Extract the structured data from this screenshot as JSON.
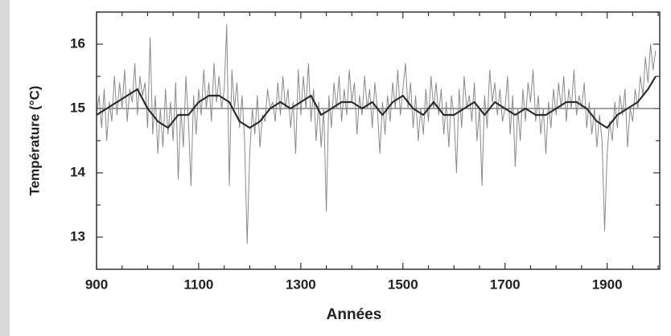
{
  "chart_data": {
    "type": "line",
    "ylabel": "Température (°C)",
    "xlabel": "Années",
    "xlim": [
      900,
      2003
    ],
    "ylim": [
      12.5,
      16.5
    ],
    "xticks": [
      900,
      1100,
      1300,
      1500,
      1700,
      1900
    ],
    "xticks_minor": [
      950,
      1000,
      1050,
      1150,
      1200,
      1250,
      1350,
      1400,
      1450,
      1550,
      1600,
      1650,
      1750,
      1800,
      1850,
      1950,
      2000
    ],
    "yticks": [
      13,
      14,
      15,
      16
    ],
    "yticks_minor": [
      13.5,
      14.5,
      15.5,
      16.5
    ],
    "baseline": 15,
    "series": [
      {
        "color": "#8a8a8a",
        "x": [
          900,
          905,
          910,
          915,
          920,
          925,
          930,
          935,
          940,
          945,
          950,
          955,
          960,
          965,
          970,
          975,
          980,
          985,
          990,
          995,
          1000,
          1005,
          1010,
          1015,
          1020,
          1025,
          1030,
          1035,
          1040,
          1045,
          1050,
          1055,
          1060,
          1065,
          1070,
          1075,
          1080,
          1085,
          1090,
          1095,
          1100,
          1105,
          1110,
          1115,
          1120,
          1125,
          1130,
          1135,
          1140,
          1145,
          1150,
          1155,
          1160,
          1165,
          1170,
          1175,
          1180,
          1185,
          1190,
          1195,
          1200,
          1205,
          1210,
          1215,
          1220,
          1225,
          1230,
          1235,
          1240,
          1245,
          1250,
          1255,
          1260,
          1265,
          1270,
          1275,
          1280,
          1285,
          1290,
          1295,
          1300,
          1305,
          1310,
          1315,
          1320,
          1325,
          1330,
          1335,
          1340,
          1345,
          1350,
          1355,
          1360,
          1365,
          1370,
          1375,
          1380,
          1385,
          1390,
          1395,
          1400,
          1405,
          1410,
          1415,
          1420,
          1425,
          1430,
          1435,
          1440,
          1445,
          1450,
          1455,
          1460,
          1465,
          1470,
          1475,
          1480,
          1485,
          1490,
          1495,
          1500,
          1505,
          1510,
          1515,
          1520,
          1525,
          1530,
          1535,
          1540,
          1545,
          1550,
          1555,
          1560,
          1565,
          1570,
          1575,
          1580,
          1585,
          1590,
          1595,
          1600,
          1605,
          1610,
          1615,
          1620,
          1625,
          1630,
          1635,
          1640,
          1645,
          1650,
          1655,
          1660,
          1665,
          1670,
          1675,
          1680,
          1685,
          1690,
          1695,
          1700,
          1705,
          1710,
          1715,
          1720,
          1725,
          1730,
          1735,
          1740,
          1745,
          1750,
          1755,
          1760,
          1765,
          1770,
          1775,
          1780,
          1785,
          1790,
          1795,
          1800,
          1805,
          1810,
          1815,
          1820,
          1825,
          1830,
          1835,
          1840,
          1845,
          1850,
          1855,
          1860,
          1865,
          1870,
          1875,
          1880,
          1885,
          1890,
          1895,
          1900,
          1905,
          1910,
          1915,
          1920,
          1925,
          1930,
          1935,
          1940,
          1945,
          1950,
          1955,
          1960,
          1965,
          1970,
          1975,
          1980,
          1985,
          1990,
          1995
        ],
        "values": [
          14.9,
          15.2,
          14.7,
          15.3,
          14.5,
          15.1,
          14.8,
          15.5,
          14.9,
          15.4,
          15.0,
          15.6,
          14.8,
          15.3,
          15.1,
          15.7,
          14.9,
          15.5,
          15.2,
          15.4,
          14.7,
          16.1,
          14.6,
          15.2,
          14.3,
          15.0,
          14.4,
          15.3,
          14.6,
          15.1,
          14.5,
          15.4,
          13.9,
          15.0,
          14.4,
          15.5,
          14.8,
          13.8,
          15.2,
          14.6,
          15.3,
          14.9,
          15.6,
          15.0,
          15.4,
          14.8,
          15.7,
          15.1,
          15.5,
          15.0,
          15.3,
          16.3,
          13.8,
          15.6,
          15.0,
          15.4,
          14.7,
          15.2,
          14.5,
          12.9,
          14.3,
          15.0,
          14.6,
          15.2,
          14.4,
          14.9,
          14.8,
          15.3,
          15.0,
          15.1,
          14.8,
          15.4,
          14.9,
          15.5,
          15.0,
          15.3,
          14.7,
          15.1,
          14.3,
          15.6,
          14.9,
          15.5,
          15.0,
          15.7,
          14.8,
          15.3,
          14.5,
          15.1,
          14.4,
          15.0,
          13.4,
          15.2,
          14.7,
          15.4,
          15.0,
          15.5,
          14.8,
          15.3,
          14.9,
          15.6,
          15.1,
          15.4,
          14.6,
          15.2,
          14.9,
          15.5,
          15.0,
          15.3,
          14.7,
          15.4,
          15.0,
          14.3,
          15.1,
          14.6,
          15.2,
          14.8,
          15.4,
          15.0,
          15.6,
          14.9,
          15.3,
          15.7,
          15.0,
          15.4,
          14.7,
          15.2,
          14.5,
          15.0,
          14.6,
          15.3,
          14.8,
          15.5,
          15.0,
          15.4,
          14.9,
          15.3,
          14.6,
          15.1,
          14.4,
          15.2,
          14.9,
          14.0,
          15.3,
          14.7,
          15.5,
          15.0,
          15.2,
          14.8,
          15.4,
          14.5,
          15.0,
          13.8,
          15.2,
          14.7,
          15.6,
          15.1,
          15.4,
          14.9,
          15.3,
          14.8,
          15.0,
          15.5,
          14.6,
          15.2,
          14.1,
          15.0,
          14.5,
          15.3,
          14.8,
          15.4,
          15.1,
          15.6,
          14.8,
          15.2,
          14.6,
          15.0,
          14.3,
          15.1,
          14.7,
          15.3,
          14.9,
          15.4,
          15.0,
          15.5,
          14.8,
          15.3,
          15.0,
          15.6,
          14.9,
          15.2,
          15.0,
          15.4,
          14.7,
          15.1,
          14.6,
          15.0,
          14.4,
          14.9,
          14.5,
          13.1,
          14.3,
          14.8,
          14.5,
          15.1,
          14.7,
          15.2,
          14.9,
          15.3,
          14.4,
          15.0,
          14.8,
          15.3,
          15.0,
          15.5,
          15.2,
          15.8,
          15.4,
          16.0,
          15.6,
          15.9
        ]
      },
      {
        "color": "#2b2b2b",
        "x": [
          900,
          920,
          940,
          960,
          980,
          1000,
          1020,
          1040,
          1060,
          1080,
          1100,
          1120,
          1140,
          1160,
          1180,
          1200,
          1220,
          1240,
          1260,
          1280,
          1300,
          1320,
          1340,
          1360,
          1380,
          1400,
          1420,
          1440,
          1460,
          1480,
          1500,
          1520,
          1540,
          1560,
          1580,
          1600,
          1620,
          1640,
          1660,
          1680,
          1700,
          1720,
          1740,
          1760,
          1780,
          1800,
          1820,
          1840,
          1860,
          1880,
          1900,
          1920,
          1940,
          1960,
          1980,
          1995
        ],
        "values": [
          14.9,
          15.0,
          15.1,
          15.2,
          15.3,
          15.0,
          14.8,
          14.7,
          14.9,
          14.9,
          15.1,
          15.2,
          15.2,
          15.1,
          14.8,
          14.7,
          14.8,
          15.0,
          15.1,
          15.0,
          15.1,
          15.2,
          14.9,
          15.0,
          15.1,
          15.1,
          15.0,
          15.1,
          14.9,
          15.1,
          15.2,
          15.0,
          14.9,
          15.1,
          14.9,
          14.9,
          15.0,
          15.1,
          14.9,
          15.1,
          15.0,
          14.9,
          15.0,
          14.9,
          14.9,
          15.0,
          15.1,
          15.1,
          15.0,
          14.8,
          14.7,
          14.9,
          15.0,
          15.1,
          15.3,
          15.5
        ]
      }
    ]
  }
}
